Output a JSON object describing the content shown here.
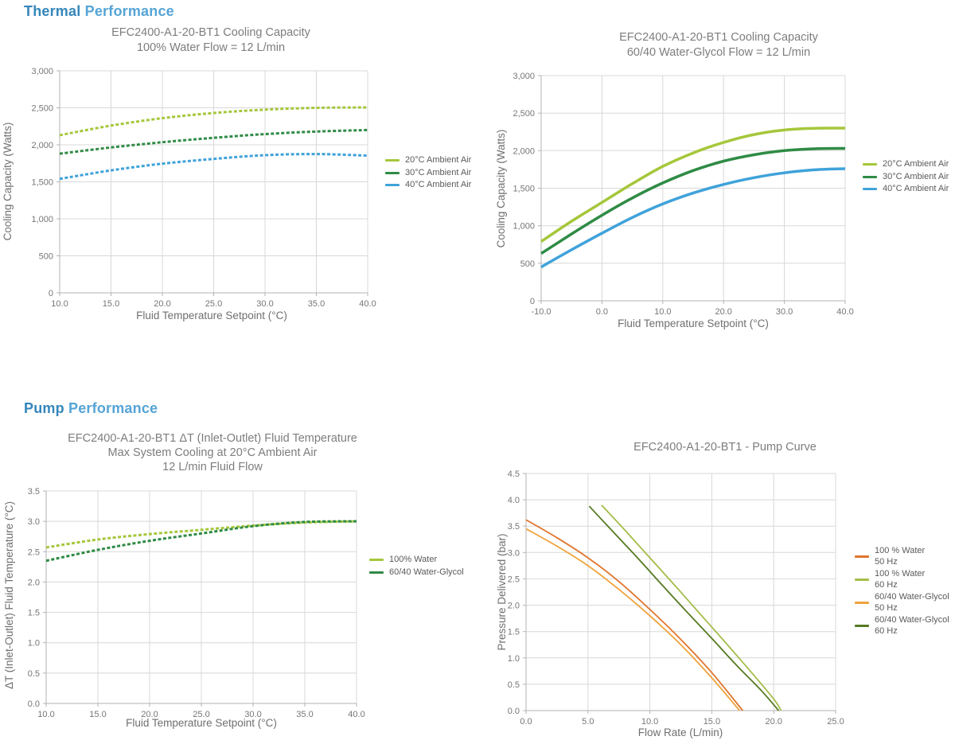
{
  "sections": [
    {
      "heading": {
        "word1": "Thermal",
        "word2": "Performance"
      }
    },
    {
      "heading": {
        "word1": "Pump",
        "word2": "Performance"
      }
    }
  ],
  "colors": {
    "heading_primary": "#3486bb",
    "heading_secondary": "#55a4d6",
    "title_gray": "#7d7d7d",
    "tick_gray": "#767676",
    "grid": "#d8d8d8",
    "axis": "#b3b3b3",
    "series_yellow_green": "#a5c73b",
    "series_green": "#2f8b45",
    "series_blue": "#3fa2da",
    "series_dark_orange": "#e0752e",
    "series_light_orange": "#efa23b",
    "series_light_green": "#a4bd49",
    "series_dark_green": "#557a21"
  },
  "chart_data": [
    {
      "type": "line",
      "title_lines": [
        "EFC2400-A1-20-BT1 Cooling Capacity",
        "100% Water Flow = 12 L/min"
      ],
      "xlabel": "Fluid Temperature Setpoint (°C)",
      "ylabel": "Cooling Capacity (Watts)",
      "xlim": [
        10,
        40
      ],
      "ylim": [
        0,
        3000
      ],
      "xticks": [
        10,
        15,
        20,
        25,
        30,
        35,
        40
      ],
      "xtick_labels": [
        "10.0",
        "15.0",
        "20.0",
        "25.0",
        "30.0",
        "35.0",
        "40.0"
      ],
      "yticks": [
        0,
        500,
        1000,
        1500,
        2000,
        2500,
        3000
      ],
      "ytick_labels": [
        "0",
        "500",
        "1,000",
        "1,500",
        "2,000",
        "2,500",
        "3,000"
      ],
      "grid": true,
      "legend_position": "right",
      "line_style": "dashed",
      "series": [
        {
          "label_lines": [
            "20°C Ambient Air"
          ],
          "color": "#a5c73b",
          "x": [
            10,
            15,
            20,
            25,
            30,
            35,
            40
          ],
          "y": [
            2130,
            2260,
            2360,
            2430,
            2475,
            2500,
            2505
          ]
        },
        {
          "label_lines": [
            "30°C Ambient Air"
          ],
          "color": "#2f8b45",
          "x": [
            10,
            15,
            20,
            25,
            30,
            35,
            40
          ],
          "y": [
            1880,
            1965,
            2035,
            2095,
            2145,
            2180,
            2200
          ]
        },
        {
          "label_lines": [
            "40°C Ambient Air"
          ],
          "color": "#3fa2da",
          "x": [
            10,
            15,
            20,
            25,
            30,
            35,
            40
          ],
          "y": [
            1540,
            1655,
            1745,
            1810,
            1860,
            1875,
            1855
          ]
        }
      ]
    },
    {
      "type": "line",
      "title_lines": [
        "EFC2400-A1-20-BT1 Cooling Capacity",
        "60/40 Water-Glycol Flow = 12 L/min"
      ],
      "xlabel": "Fluid Temperature Setpoint (°C)",
      "ylabel": "Cooling Capacity (Watts)",
      "xlim": [
        -10,
        40
      ],
      "ylim": [
        0,
        3000
      ],
      "xticks": [
        -10,
        0,
        10,
        20,
        30,
        40
      ],
      "xtick_labels": [
        "-10.0",
        "0.0",
        "10.0",
        "20.0",
        "30.0",
        "40.0"
      ],
      "yticks": [
        0,
        500,
        1000,
        1500,
        2000,
        2500,
        3000
      ],
      "ytick_labels": [
        "0",
        "500",
        "1,000",
        "1,500",
        "2,000",
        "2,500",
        "3,000"
      ],
      "grid": true,
      "legend_position": "right",
      "line_style": "solid",
      "series": [
        {
          "label_lines": [
            "20°C Ambient Air"
          ],
          "color": "#a5c73b",
          "x": [
            -10,
            -5,
            0,
            5,
            10,
            15,
            20,
            25,
            30,
            35,
            40
          ],
          "y": [
            790,
            1060,
            1310,
            1560,
            1790,
            1970,
            2110,
            2215,
            2275,
            2298,
            2300
          ]
        },
        {
          "label_lines": [
            "30°C Ambient Air"
          ],
          "color": "#2f8b45",
          "x": [
            -10,
            -5,
            0,
            5,
            10,
            15,
            20,
            25,
            30,
            35,
            40
          ],
          "y": [
            630,
            890,
            1140,
            1370,
            1570,
            1735,
            1860,
            1945,
            2000,
            2025,
            2030
          ]
        },
        {
          "label_lines": [
            "40°C Ambient Air"
          ],
          "color": "#3fa2da",
          "x": [
            -10,
            -5,
            0,
            5,
            10,
            15,
            20,
            25,
            30,
            35,
            40
          ],
          "y": [
            450,
            680,
            900,
            1110,
            1290,
            1435,
            1550,
            1640,
            1705,
            1745,
            1760
          ]
        }
      ]
    },
    {
      "type": "line",
      "title_lines": [
        "EFC2400-A1-20-BT1 ΔT (Inlet-Outlet) Fluid Temperature",
        "Max System Cooling at 20°C Ambient Air",
        "12 L/min Fluid Flow"
      ],
      "xlabel": "Fluid Temperature Setpoint (°C)",
      "ylabel": "ΔT (Inlet-Outlet) Fluid Temperature (°C)",
      "xlim": [
        10,
        40
      ],
      "ylim": [
        0,
        3.5
      ],
      "xticks": [
        10,
        15,
        20,
        25,
        30,
        35,
        40
      ],
      "xtick_labels": [
        "10.0",
        "15.0",
        "20.0",
        "25.0",
        "30.0",
        "35.0",
        "40.0"
      ],
      "yticks": [
        0,
        0.5,
        1,
        1.5,
        2,
        2.5,
        3,
        3.5
      ],
      "ytick_labels": [
        "0.0",
        "0.5",
        "1.0",
        "1.5",
        "2.0",
        "2.5",
        "3.0",
        "3.5"
      ],
      "grid": true,
      "legend_position": "right",
      "line_style": "dashed",
      "series": [
        {
          "label_lines": [
            "100% Water"
          ],
          "color": "#a5c73b",
          "x": [
            10,
            15,
            20,
            25,
            30,
            35,
            40
          ],
          "y": [
            2.57,
            2.7,
            2.79,
            2.86,
            2.93,
            2.98,
            3.0
          ]
        },
        {
          "label_lines": [
            "60/40 Water-Glycol"
          ],
          "color": "#2f8b45",
          "x": [
            10,
            15,
            20,
            25,
            30,
            35,
            40
          ],
          "y": [
            2.35,
            2.53,
            2.68,
            2.8,
            2.92,
            2.99,
            3.0
          ]
        }
      ]
    },
    {
      "type": "line",
      "title_lines": [
        "EFC2400-A1-20-BT1 - Pump Curve"
      ],
      "xlabel": "Flow Rate (L/min)",
      "ylabel": "Pressure Delivered (bar)",
      "xlim": [
        0,
        25
      ],
      "ylim": [
        0,
        4.5
      ],
      "xticks": [
        0,
        5,
        10,
        15,
        20,
        25
      ],
      "xtick_labels": [
        "0.0",
        "5.0",
        "10.0",
        "15.0",
        "20.0",
        "25.0"
      ],
      "yticks": [
        0,
        0.5,
        1,
        1.5,
        2,
        2.5,
        3,
        3.5,
        4,
        4.5
      ],
      "ytick_labels": [
        "0.0",
        "0.5",
        "1.0",
        "1.5",
        "2.0",
        "2.5",
        "3.0",
        "3.5",
        "4.0",
        "4.5"
      ],
      "grid": true,
      "legend_position": "right",
      "line_style": "solid",
      "series": [
        {
          "label_lines": [
            "100 % Water",
            "50 Hz"
          ],
          "color": "#e0752e",
          "x": [
            0,
            2.5,
            5,
            7.5,
            10,
            12.5,
            15,
            17.5
          ],
          "y": [
            3.62,
            3.28,
            2.9,
            2.45,
            1.92,
            1.35,
            0.72,
            0
          ]
        },
        {
          "label_lines": [
            "100 % Water",
            "60 Hz"
          ],
          "color": "#a4bd49",
          "x": [
            6.1,
            8,
            10,
            12,
            14,
            16,
            18,
            20,
            20.6
          ],
          "y": [
            3.9,
            3.42,
            2.9,
            2.38,
            1.85,
            1.32,
            0.78,
            0.22,
            0
          ]
        },
        {
          "label_lines": [
            "60/40 Water-Glycol",
            "50 Hz"
          ],
          "color": "#efa23b",
          "x": [
            0,
            2.5,
            5,
            7.5,
            10,
            12.5,
            15,
            17.25
          ],
          "y": [
            3.45,
            3.12,
            2.75,
            2.3,
            1.8,
            1.25,
            0.62,
            0
          ]
        },
        {
          "label_lines": [
            "60/40 Water-Glycol",
            "60 Hz"
          ],
          "color": "#557a21",
          "x": [
            5.1,
            7,
            9,
            11,
            13,
            15,
            17,
            19,
            20.4
          ],
          "y": [
            3.88,
            3.4,
            2.9,
            2.38,
            1.87,
            1.37,
            0.86,
            0.38,
            0
          ]
        }
      ]
    }
  ]
}
